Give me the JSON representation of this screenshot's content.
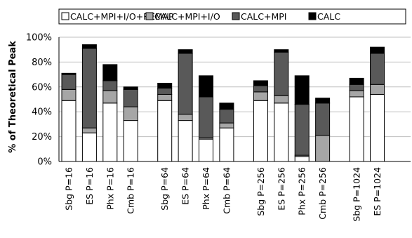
{
  "chart_data": {
    "type": "bar",
    "stacked": true,
    "ylabel": "% of Theoretical Peak",
    "ylim": [
      0,
      100
    ],
    "yticks": [
      "0%",
      "20%",
      "40%",
      "60%",
      "80%",
      "100%"
    ],
    "legend_position": "top",
    "groups": [
      {
        "categories": [
          "Sbg P=16",
          "ES P=16",
          "Phx P=16",
          "Cmb P=16"
        ]
      },
      {
        "categories": [
          "Sbg P=64",
          "ES P=64",
          "Phx P=64",
          "Cmb P=64"
        ]
      },
      {
        "categories": [
          "Sbg P=256",
          "ES P=256",
          "Phx P=256",
          "Cmb P=256"
        ]
      },
      {
        "categories": [
          "Sbg P=1024",
          "ES P=1024"
        ]
      }
    ],
    "categories": [
      "Sbg P=16",
      "ES P=16",
      "Phx P=16",
      "Cmb P=16",
      "Sbg P=64",
      "ES P=64",
      "Phx P=64",
      "Cmb P=64",
      "Sbg P=256",
      "ES P=256",
      "Phx P=256",
      "Cmb P=256",
      "Sbg P=1024",
      "ES P=1024"
    ],
    "series": [
      {
        "name": "CALC+MPI+I/O+REMAP",
        "color": "#ffffff",
        "values": [
          49,
          23,
          47,
          33,
          49,
          33,
          18,
          27,
          49,
          47,
          4,
          0,
          52,
          54
        ]
      },
      {
        "name": "CALC+MPI+I/O",
        "color": "#a6a6a6",
        "values": [
          9,
          4,
          10,
          11,
          5,
          5,
          1,
          4,
          7,
          6,
          1,
          21,
          5,
          8
        ]
      },
      {
        "name": "CALC+MPI",
        "color": "#595959",
        "values": [
          12,
          64,
          8,
          14,
          5,
          49,
          33,
          11,
          5,
          35,
          41,
          26,
          5,
          25
        ]
      },
      {
        "name": "CALC",
        "color": "#000000",
        "values": [
          1,
          3,
          13,
          2,
          4,
          3,
          17,
          5,
          4,
          2,
          23,
          4,
          5,
          5
        ]
      }
    ]
  }
}
